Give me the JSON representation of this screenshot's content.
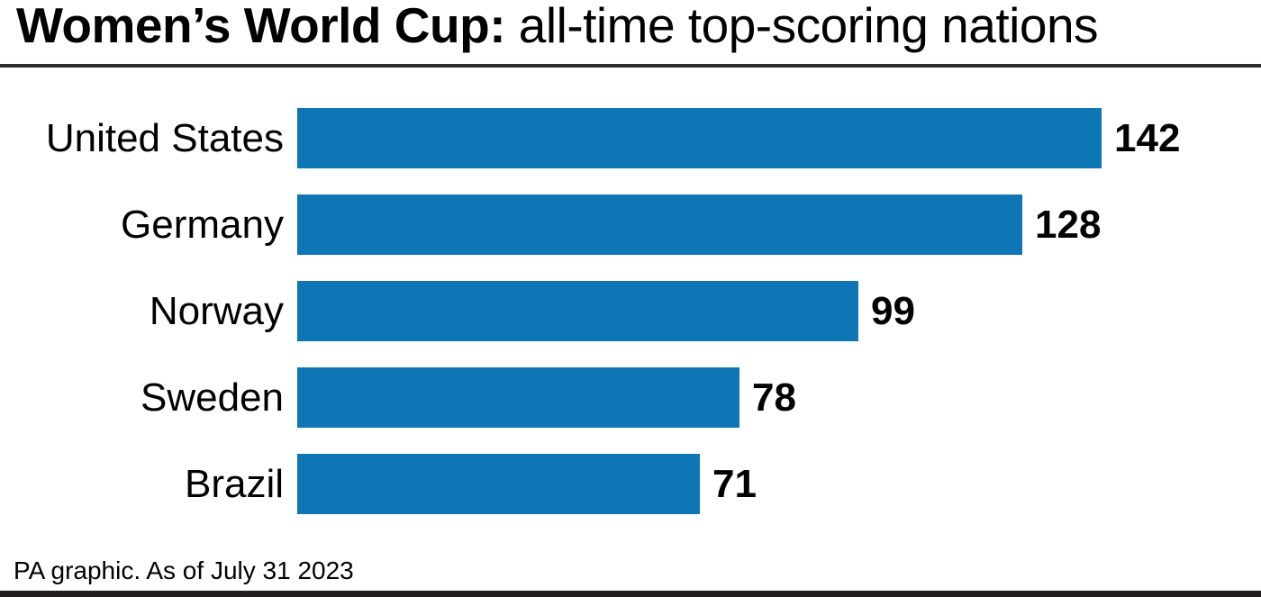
{
  "title": {
    "bold": "Women’s World Cup:",
    "regular": " all-time top-scoring nations"
  },
  "chart_data": {
    "type": "bar",
    "orientation": "horizontal",
    "title": "Women’s World Cup: all-time top-scoring nations",
    "categories": [
      "United States",
      "Germany",
      "Norway",
      "Sweden",
      "Brazil"
    ],
    "values": [
      142,
      128,
      99,
      78,
      71
    ],
    "value_labels": [
      "142",
      "128",
      "99",
      "78",
      "71"
    ],
    "xlabel": "",
    "ylabel": "",
    "xlim": [
      0,
      142
    ],
    "grid": false,
    "legend": false,
    "bar_color": "#0e76b4"
  },
  "footer": {
    "source": "PA graphic. As of July 31 2023"
  },
  "colors": {
    "bar": "#0e76b4",
    "title_rule": "#2d2d2d",
    "bottom_bar": "#231f20",
    "text": "#000000",
    "background": "#ffffff"
  }
}
